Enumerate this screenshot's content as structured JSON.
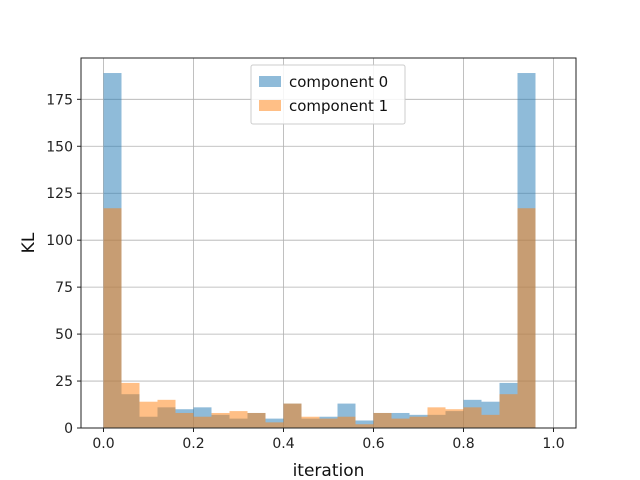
{
  "chart_data": {
    "type": "bar",
    "xlabel": "iteration",
    "ylabel": "KL",
    "xlim": [
      -0.05,
      1.05
    ],
    "ylim": [
      0,
      197
    ],
    "xticks": [
      0.0,
      0.2,
      0.4,
      0.6,
      0.8,
      1.0
    ],
    "xtick_labels": [
      "0.0",
      "0.2",
      "0.4",
      "0.6",
      "0.8",
      "1.0"
    ],
    "yticks": [
      0,
      25,
      50,
      75,
      100,
      125,
      150,
      175
    ],
    "ytick_labels": [
      "0",
      "25",
      "50",
      "75",
      "100",
      "125",
      "150",
      "175"
    ],
    "grid": true,
    "legend_position": "top-center",
    "bins": 25,
    "bin_range": [
      0.0,
      1.0
    ],
    "series": [
      {
        "name": "component 0",
        "color": "#1f77b4",
        "alpha": 0.5,
        "values": [
          189,
          18,
          6,
          11,
          10,
          11,
          7,
          5,
          8,
          5,
          13,
          5,
          6,
          13,
          4,
          8,
          8,
          7,
          7,
          9,
          15,
          14,
          24,
          189,
          0
        ]
      },
      {
        "name": "component 1",
        "color": "#ff7f0e",
        "alpha": 0.5,
        "values": [
          117,
          24,
          14,
          15,
          8,
          6,
          8,
          9,
          8,
          3,
          13,
          6,
          5,
          6,
          2,
          8,
          5,
          6,
          11,
          10,
          11,
          7,
          18,
          117,
          0
        ]
      }
    ]
  }
}
